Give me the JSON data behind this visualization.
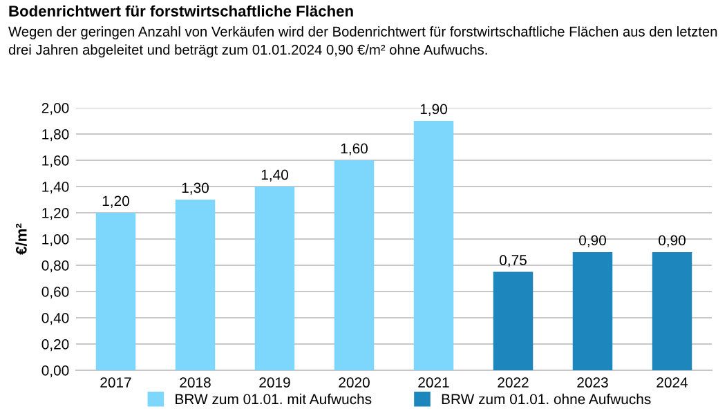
{
  "chart_data": {
    "type": "bar",
    "title": "Bodenrichtwert für forstwirtschaftliche Flächen",
    "subtitle": "Wegen der geringen Anzahl von Verkäufen wird der Bodenrichtwert für forstwirtschaftliche Flächen aus den letzten drei Jahren abgeleitet und beträgt zum 01.01.2024 0,90 €/m² ohne Aufwuchs.",
    "ylabel": "€/m²",
    "categories": [
      "2017",
      "2018",
      "2019",
      "2020",
      "2021",
      "2022",
      "2023",
      "2024"
    ],
    "series": [
      {
        "name": "BRW zum 01.01. mit Aufwuchs",
        "color": "#7dd6fb",
        "values": [
          1.2,
          1.3,
          1.4,
          1.6,
          1.9,
          null,
          null,
          null
        ],
        "value_labels": [
          "1,20",
          "1,30",
          "1,40",
          "1,60",
          "1,90",
          null,
          null,
          null
        ]
      },
      {
        "name": "BRW zum 01.01. ohne Aufwuchs",
        "color": "#1c86bd",
        "values": [
          null,
          null,
          null,
          null,
          null,
          0.75,
          0.9,
          0.9
        ],
        "value_labels": [
          null,
          null,
          null,
          null,
          null,
          "0,75",
          "0,90",
          "0,90"
        ]
      }
    ],
    "ylim": [
      0,
      2
    ],
    "yticks": [
      {
        "value": 0,
        "label": "0,00"
      },
      {
        "value": 0.2,
        "label": "0,20"
      },
      {
        "value": 0.4,
        "label": "0,40"
      },
      {
        "value": 0.6,
        "label": "0,60"
      },
      {
        "value": 0.8,
        "label": "0,80"
      },
      {
        "value": 1.0,
        "label": "1,00"
      },
      {
        "value": 1.2,
        "label": "1,20"
      },
      {
        "value": 1.4,
        "label": "1,40"
      },
      {
        "value": 1.6,
        "label": "1,60"
      },
      {
        "value": 1.8,
        "label": "1,80"
      },
      {
        "value": 2.0,
        "label": "2,00"
      }
    ],
    "grid": "y",
    "legend": "bottom"
  }
}
